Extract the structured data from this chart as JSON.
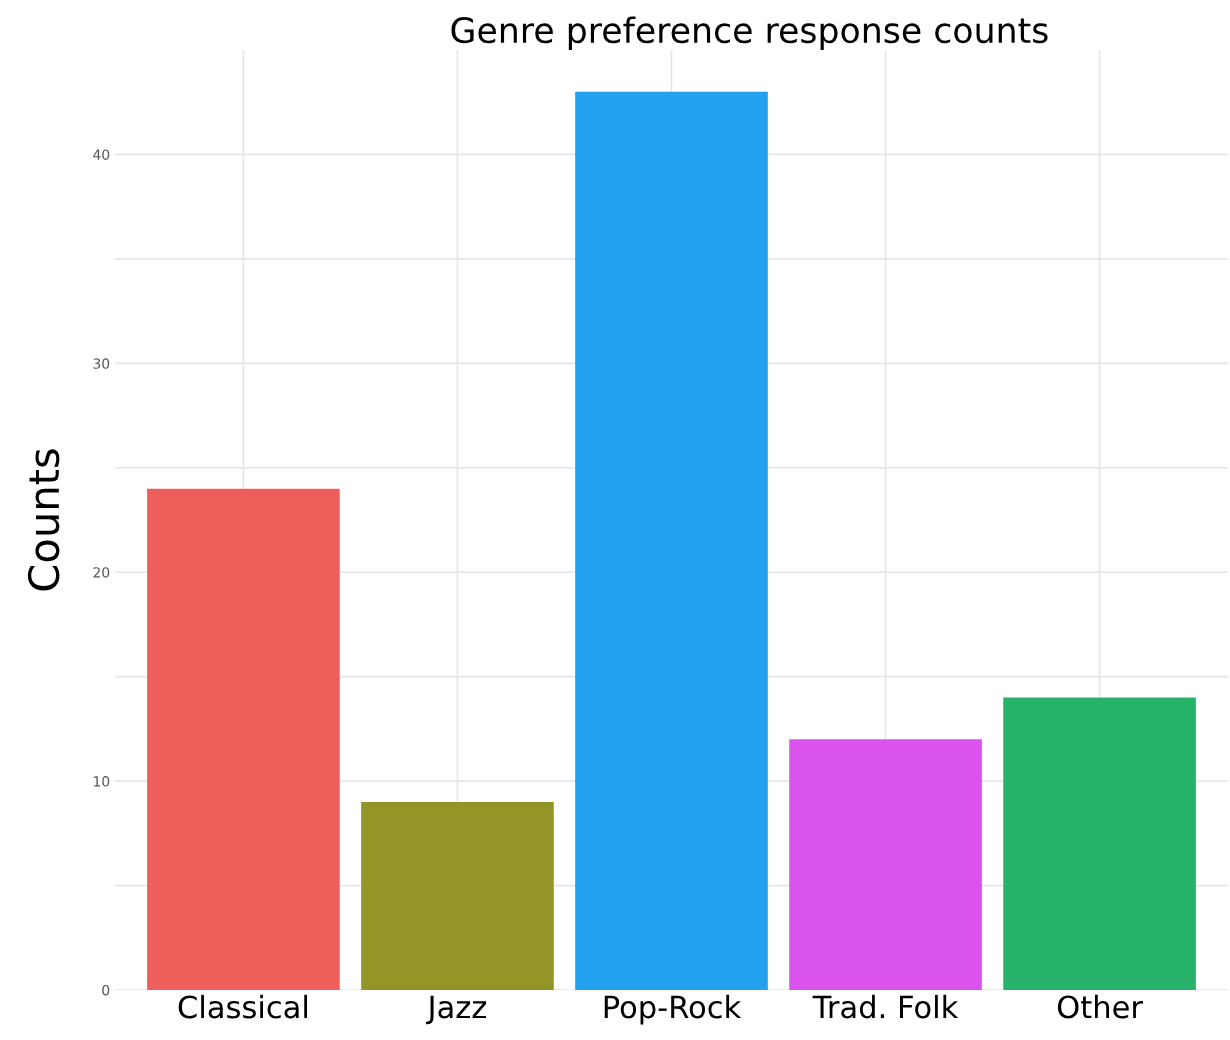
{
  "chart_data": {
    "type": "bar",
    "title": "Genre preference response counts",
    "ylabel": "Counts",
    "categories": [
      "Classical",
      "Jazz",
      "Pop-Rock",
      "Trad. Folk",
      "Other"
    ],
    "values": [
      24,
      9,
      43,
      12,
      14
    ],
    "colors": [
      "#ee5f5c",
      "#939526",
      "#23a0ee",
      "#d953ec",
      "#28b36b"
    ],
    "ylim": [
      0,
      45
    ],
    "yticks": [
      0,
      {
        "value": 5,
        "label": null
      },
      10,
      {
        "value": 15,
        "label": null
      },
      20,
      {
        "value": 25,
        "label": null
      },
      30,
      {
        "value": 35,
        "label": null
      },
      40
    ],
    "grid": true,
    "legend": false
  }
}
